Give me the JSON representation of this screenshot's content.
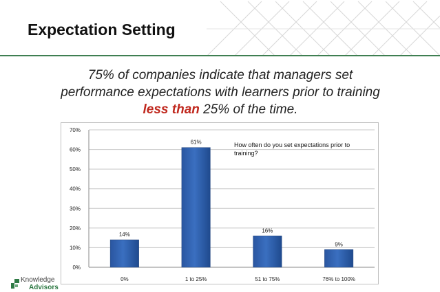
{
  "slide": {
    "title": "Expectation Setting",
    "headline_line1": "75% of companies indicate that managers set",
    "headline_line2": "performance expectations with learners prior to training",
    "headline_emphasis": "less than",
    "headline_line3_rest": " 25% of the time.",
    "emphasis_color": "#c0281e",
    "rule_color": "#3f7f52"
  },
  "logo": {
    "line1": "Knowledge",
    "line2": "Advisors"
  },
  "chart_data": {
    "type": "bar",
    "title": "How often do you set expectations prior to training?",
    "categories": [
      "0%",
      "1 to 25%",
      "51 to 75%",
      "76% to 100%"
    ],
    "values": [
      14,
      61,
      16,
      9
    ],
    "data_labels": [
      "14%",
      "61%",
      "16%",
      "9%"
    ],
    "ylim": [
      0,
      70
    ],
    "yticks": [
      "0%",
      "10%",
      "20%",
      "30%",
      "40%",
      "50%",
      "60%",
      "70%"
    ],
    "grid": true,
    "legend": false,
    "bar_color": "#3a6fc0"
  }
}
